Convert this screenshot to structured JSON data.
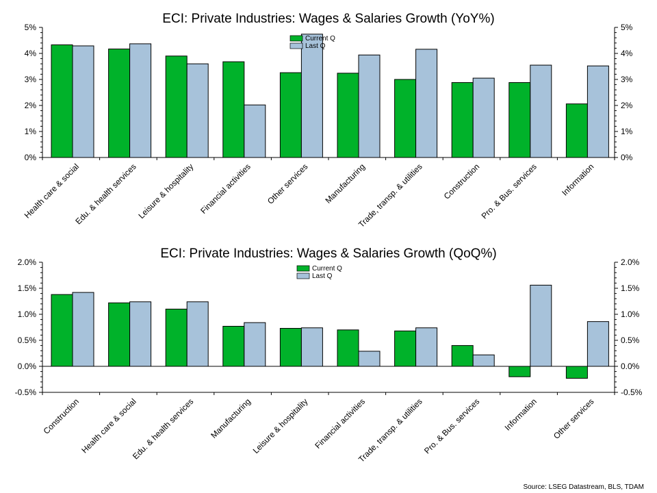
{
  "source": "Source: LSEG Datastream, BLS, TDAM",
  "chart_data": [
    {
      "type": "bar",
      "title": "ECI: Private Industries: Wages & Salaries Growth (YoY%)",
      "categories": [
        "Health care & social",
        "Edu. & health services",
        "Leisure & hospitality",
        "Financial activities",
        "Other services",
        "Manufacturing",
        "Trade, transp. & utilities",
        "Construction",
        "Pro. & Bus. services",
        "Information"
      ],
      "series": [
        {
          "name": "Current Q",
          "color": "#00b22a",
          "values": [
            4.33,
            4.17,
            3.9,
            3.68,
            3.26,
            3.24,
            3.0,
            2.88,
            2.88,
            2.06
          ]
        },
        {
          "name": "Last Q",
          "color": "#a7c2da",
          "values": [
            4.29,
            4.37,
            3.6,
            2.02,
            4.74,
            3.94,
            4.16,
            3.05,
            3.55,
            3.52
          ]
        }
      ],
      "ylim": [
        0,
        5
      ],
      "yticks": [
        0,
        1,
        2,
        3,
        4,
        5
      ],
      "ytick_labels": [
        "0%",
        "1%",
        "2%",
        "3%",
        "4%",
        "5%"
      ],
      "legend": "top-center",
      "grid": false
    },
    {
      "type": "bar",
      "title": "ECI: Private Industries: Wages & Salaries Growth (QoQ%)",
      "categories": [
        "Construction",
        "Health care & social",
        "Edu. & health services",
        "Manufacturing",
        "Leisure & hospitality",
        "Financial activities",
        "Trade, transp. & utilities",
        "Pro. & Bus. services",
        "Information",
        "Other services"
      ],
      "series": [
        {
          "name": "Current Q",
          "color": "#00b22a",
          "values": [
            1.38,
            1.22,
            1.1,
            0.77,
            0.73,
            0.7,
            0.68,
            0.4,
            -0.2,
            -0.23
          ]
        },
        {
          "name": "Last Q",
          "color": "#a7c2da",
          "values": [
            1.42,
            1.24,
            1.24,
            0.84,
            0.74,
            0.29,
            0.74,
            0.22,
            1.56,
            0.86
          ]
        }
      ],
      "ylim": [
        -0.5,
        2.0
      ],
      "yticks": [
        -0.5,
        0,
        0.5,
        1.0,
        1.5,
        2.0
      ],
      "ytick_labels": [
        "-0.5%",
        "0.0%",
        "0.5%",
        "1.0%",
        "1.5%",
        "2.0%"
      ],
      "legend": "top-center",
      "grid": false
    }
  ]
}
